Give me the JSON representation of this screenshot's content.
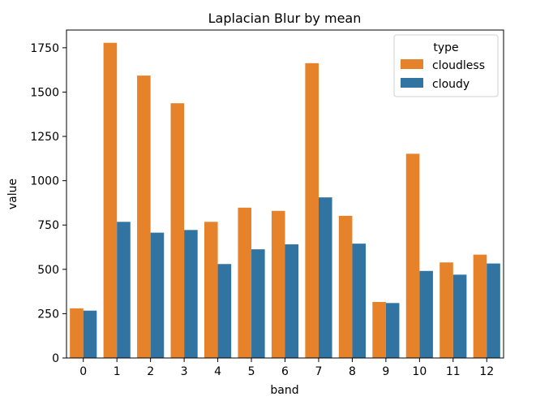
{
  "chart_data": {
    "type": "bar",
    "title": "Laplacian Blur by mean",
    "xlabel": "band",
    "ylabel": "value",
    "categories": [
      "0",
      "1",
      "2",
      "3",
      "4",
      "5",
      "6",
      "7",
      "8",
      "9",
      "10",
      "11",
      "12"
    ],
    "ylim": [
      0,
      1850
    ],
    "yticks": [
      0,
      250,
      500,
      750,
      1000,
      1250,
      1500,
      1750
    ],
    "series": [
      {
        "name": "cloudless",
        "color": "#e6822a",
        "values": [
          280,
          1778,
          1593,
          1437,
          768,
          848,
          830,
          1663,
          802,
          316,
          1152,
          539,
          583
        ]
      },
      {
        "name": "cloudy",
        "color": "#3274a1",
        "values": [
          267,
          768,
          707,
          722,
          530,
          613,
          641,
          906,
          645,
          310,
          491,
          470,
          533
        ]
      }
    ],
    "grid": false,
    "legend": {
      "title": "type",
      "placement": "top-right"
    }
  }
}
